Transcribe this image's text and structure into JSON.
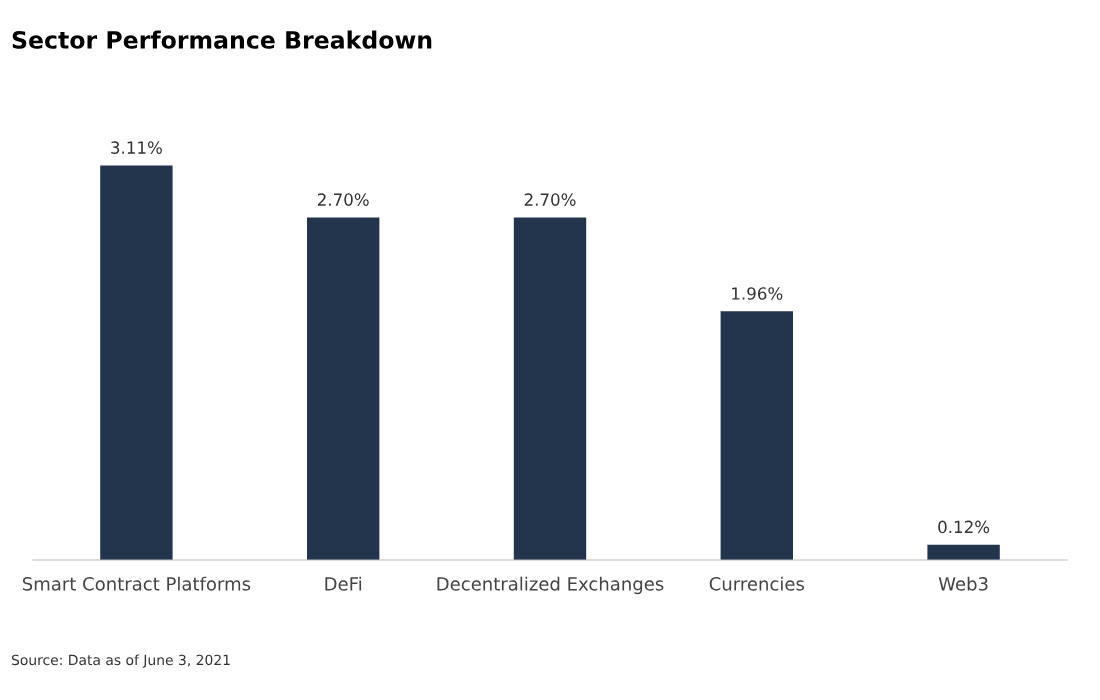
{
  "chart_data": {
    "type": "bar",
    "title": "Sector Performance Breakdown",
    "categories": [
      "Smart Contract Platforms",
      "DeFi",
      "Decentralized Exchanges",
      "Currencies",
      "Web3"
    ],
    "values": [
      3.11,
      2.7,
      2.7,
      1.96,
      0.12
    ],
    "value_labels": [
      "3.11%",
      "2.70%",
      "2.70%",
      "1.96%",
      "0.12%"
    ],
    "color": "#22354d",
    "grid": false,
    "annotations": [
      "Source: Data as of June 3, 2021"
    ]
  }
}
